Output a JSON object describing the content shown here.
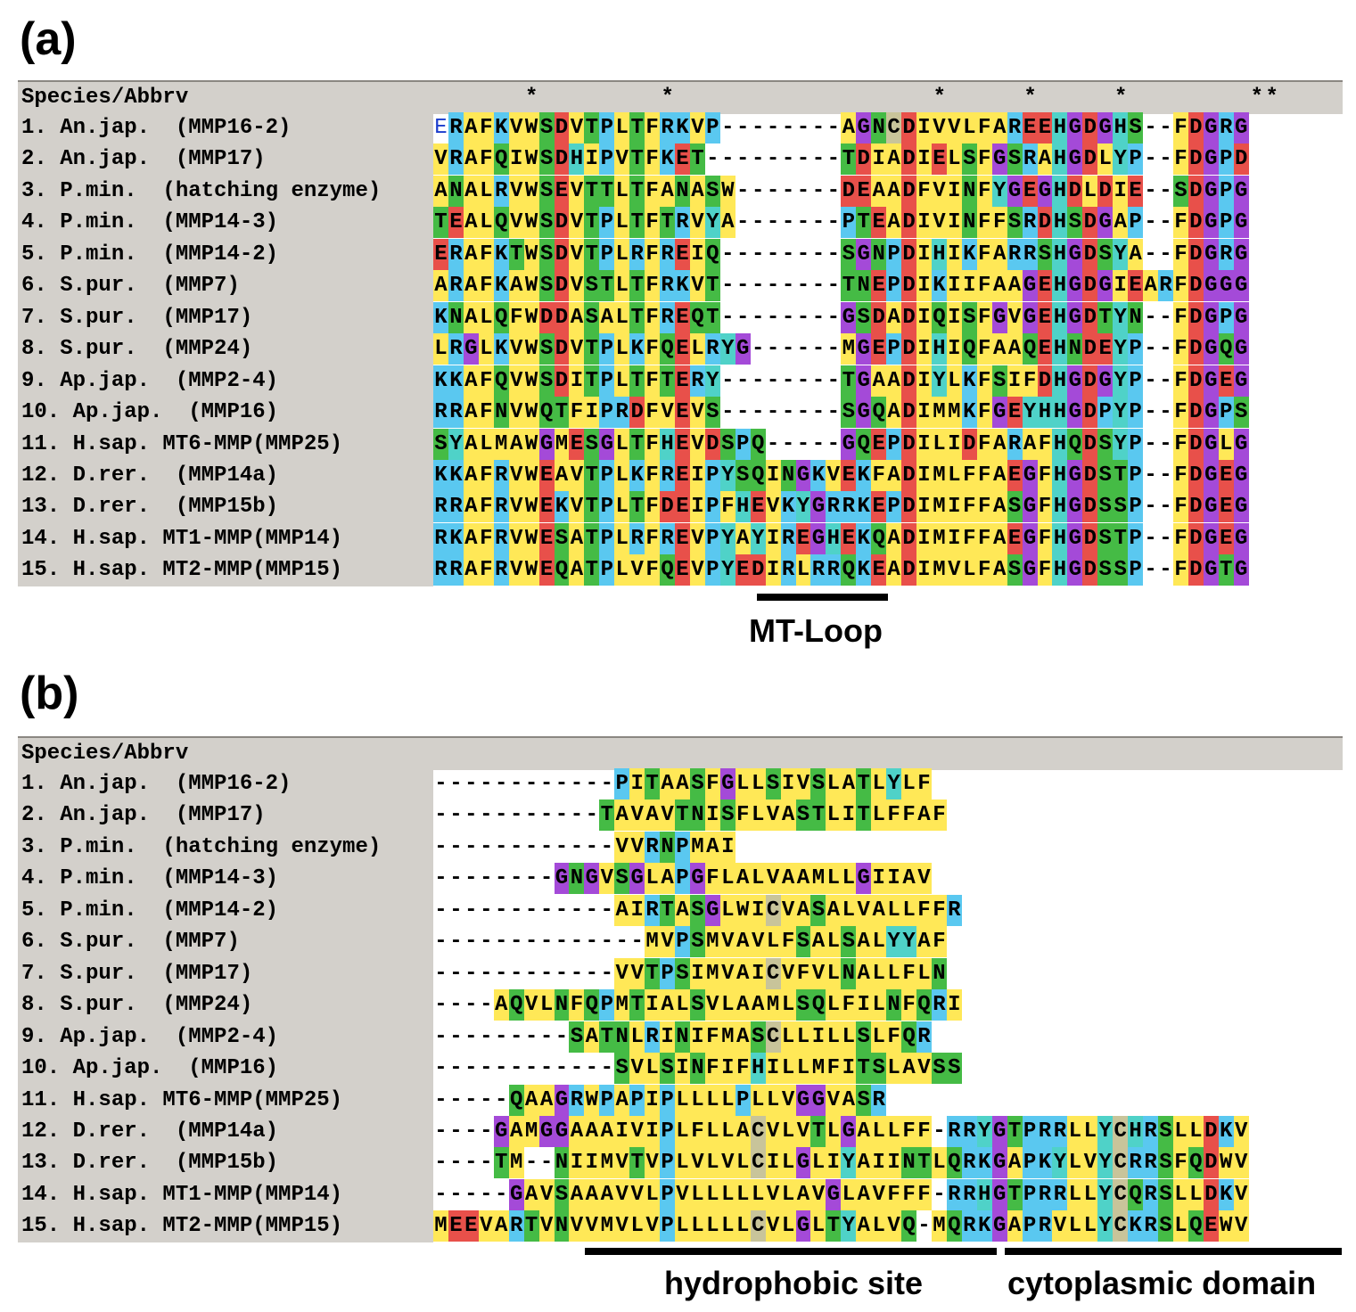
{
  "panel_a": {
    "label": "(a)",
    "header": "Species/Abbrv",
    "conservation": "      *        *                 *     *     *        **",
    "names": [
      "1. An.jap.  (MMP16-2)",
      "2. An.jap.  (MMP17)",
      "3. P.min.  (hatching enzyme)",
      "4. P.min.  (MMP14-3)",
      "5. P.min.  (MMP14-2)",
      "6. S.pur.  (MMP7)",
      "7. S.pur.  (MMP17)",
      "8. S.pur.  (MMP24)",
      "9. Ap.jap.  (MMP2-4)",
      "10. Ap.jap.  (MMP16)",
      "11. H.sap. MT6-MMP(MMP25)",
      "12. D.rer.  (MMP14a)",
      "13. D.rer.  (MMP15b)",
      "14. H.sap. MT1-MMP(MMP14)",
      "15. H.sap. MT2-MMP(MMP15)"
    ],
    "sequences": [
      "ERAFKVWSDVTPLTFRKVP--------AGNCDIVVLFAREEHGDGHS--FDGRG",
      "VRAFQIWSDHIPVTFKET---------TDIADIELSFGSRAHGDLYP--FDGPD",
      "ANALRVWSEVTTLTFANASW-------DEAADFVINFYGEGHDLDIE--SDGPG",
      "TEALQVWSDVTPLTFTRVYA-------PTEADIVINFFSRDHSDGAP--FDGPG",
      "ERAFKTWSDVTPLRFREIQ--------SGNPDIHIKFARRSHGDSYA--FDGRG",
      "ARAFKAWSDVSTLTFRKVT--------TNEPDIKIIFAAGEHGDGIEARFDGGG",
      "KNALQFWDDASALTFREQT--------GSDADIQISFGVGEHGDTYN--FDGPG",
      "LRGLKVWSDVTPLKFQELRYG------MGEPDIHIQFAAQEHNDEYP--FDGQG",
      "KKAFQVWSDITPLTFTERY--------TGAADIYLKFSIFDHGDGYP--FDGEG",
      "RRAFNVWQTFIPRDFVEVS--------SGQADIMMKFGEYHHGDPYP--FDGPS",
      "SYALMAWGMESGLTFHEVDSPQ-----GQEPDILIDFARAFHQDSYP--FDGLG",
      "KKAFRVWEAVTPLKFREIPYSQINGKVEKFADIMLFFAEGFHGDSTP--FDGEG",
      "RRAFRVWEKVTPLTFDEIPFHEVKYGRRKEPDIMIFFASGFHGDSSP--FDGEG",
      "RKAFRVWESATPLRFREVPYAYIREGHEKQADIMIFFAEGFHGDSTP--FDGEG",
      "RRAFRVWEQATPLVFQEVPYEDIRLRRQKEADIMVLFASGFHGDSSP--FDGTG"
    ],
    "annotation": "MT-Loop"
  },
  "panel_b": {
    "label": "(b)",
    "header": "Species/Abbrv",
    "names": [
      "1. An.jap.  (MMP16-2)",
      "2. An.jap.  (MMP17)",
      "3. P.min.  (hatching enzyme)",
      "4. P.min.  (MMP14-3)",
      "5. P.min.  (MMP14-2)",
      "6. S.pur.  (MMP7)",
      "7. S.pur.  (MMP17)",
      "8. S.pur.  (MMP24)",
      "9. Ap.jap.  (MMP2-4)",
      "10. Ap.jap.  (MMP16)",
      "11. H.sap. MT6-MMP(MMP25)",
      "12. D.rer.  (MMP14a)",
      "13. D.rer.  (MMP15b)",
      "14. H.sap. MT1-MMP(MMP14)",
      "15. H.sap. MT2-MMP(MMP15)"
    ],
    "sequences": [
      "------------PITAASFGLLSIVSLATLYLF",
      "-----------TAVAVTNISFLVASTLITLFFAF",
      "------------VVRNPMAI",
      "--------GNGVSGLAPGFLALVAAMLLGIIAV",
      "------------AIRTASGLWICVASALVALLFFR",
      "--------------MVPSMVAVLFSALSALYYAF",
      "------------VVTPSIMVAICVFVLNALLFLN",
      "----AQVLNFQPMTIALSVLAAMLSQLFILNFQRI",
      "---------SATNLRINIFMASCLLILLSLFQR",
      "------------SVLSINFIFHILLMFITSLAVSS",
      "-----QAAGRWPAPIPLLLLPLLVGGVASR",
      "----GAMGGAAAIVIPLFLLACVLVTLGALLFF-RRYGTPRRLLYCHRSLLDKV",
      "----TM--NIIMVTVPLVLVLCILGLIYAIINTLQRKGAPKYLVYCRRSFQDWV",
      "-----GAVSAAAVVLPVLLLLLVLAVGLAVFFF-RRHGTPRRLLYCQRSLLDKV",
      "MEEVARTVNVVMVLVPLLLLLCVLGLTYALVQ-MQRKGAPRVLLYCKRSLQEWV"
    ],
    "annotations": [
      "hydrophobic site",
      "cytoplasmic domain"
    ]
  },
  "colors": {
    "hydrophobic": "#ffe857",
    "polar": "#45bb45",
    "basic": "#5ac8f0",
    "acidic": "#e8504a",
    "glycine": "#a44ad8",
    "proline": "#5ac8f0",
    "tyrosine_his": "#4fd2c8",
    "cysteine": "#c8c49a",
    "header_bg": "#d3d0cb"
  }
}
